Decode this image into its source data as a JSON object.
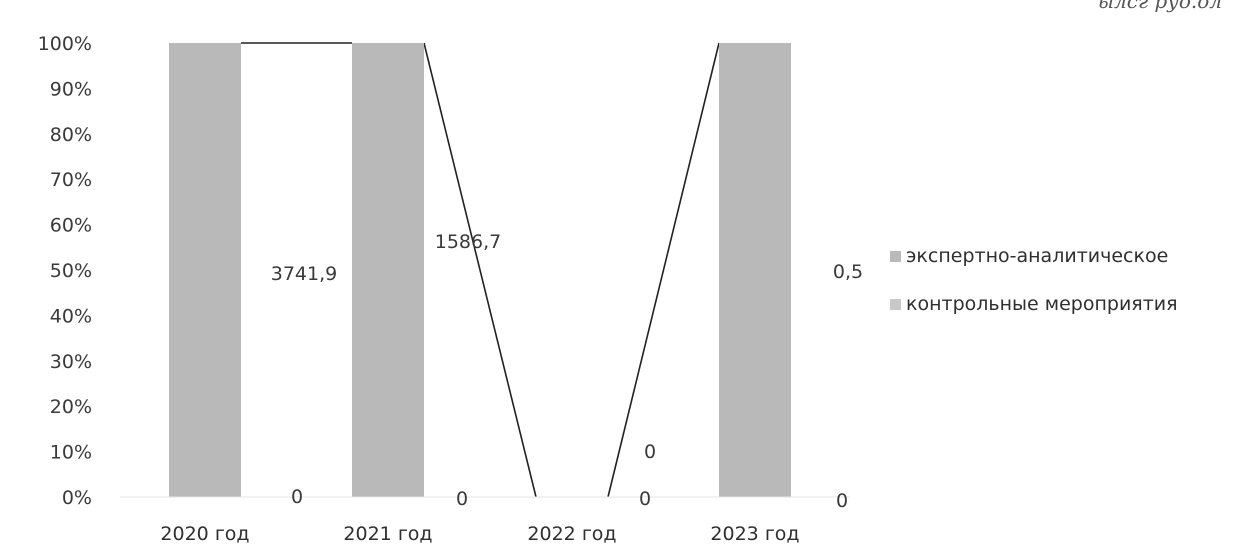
{
  "corner_text": "ылсг руо.ол",
  "chart_data": {
    "type": "bar",
    "stacked": "percent",
    "categories": [
      "2020 год",
      "2021 год",
      "2022 год",
      "2023 год"
    ],
    "series": [
      {
        "name": "экспертно-аналитическое",
        "values": [
          3741.9,
          1586.7,
          0,
          0.5
        ],
        "labels": [
          "3741,9",
          "1586,7",
          "0",
          "0,5"
        ],
        "color": "#b9b9b9"
      },
      {
        "name": "контрольные мероприятия",
        "values": [
          0,
          0,
          0,
          0
        ],
        "labels": [
          "0",
          "0",
          "0",
          "0"
        ],
        "color": "#c8c8c8"
      }
    ],
    "ylim": [
      0,
      100
    ],
    "yticks": [
      "0%",
      "10%",
      "20%",
      "30%",
      "40%",
      "50%",
      "60%",
      "70%",
      "80%",
      "90%",
      "100%"
    ],
    "series_lines": true,
    "legend": "right",
    "grid": false
  }
}
